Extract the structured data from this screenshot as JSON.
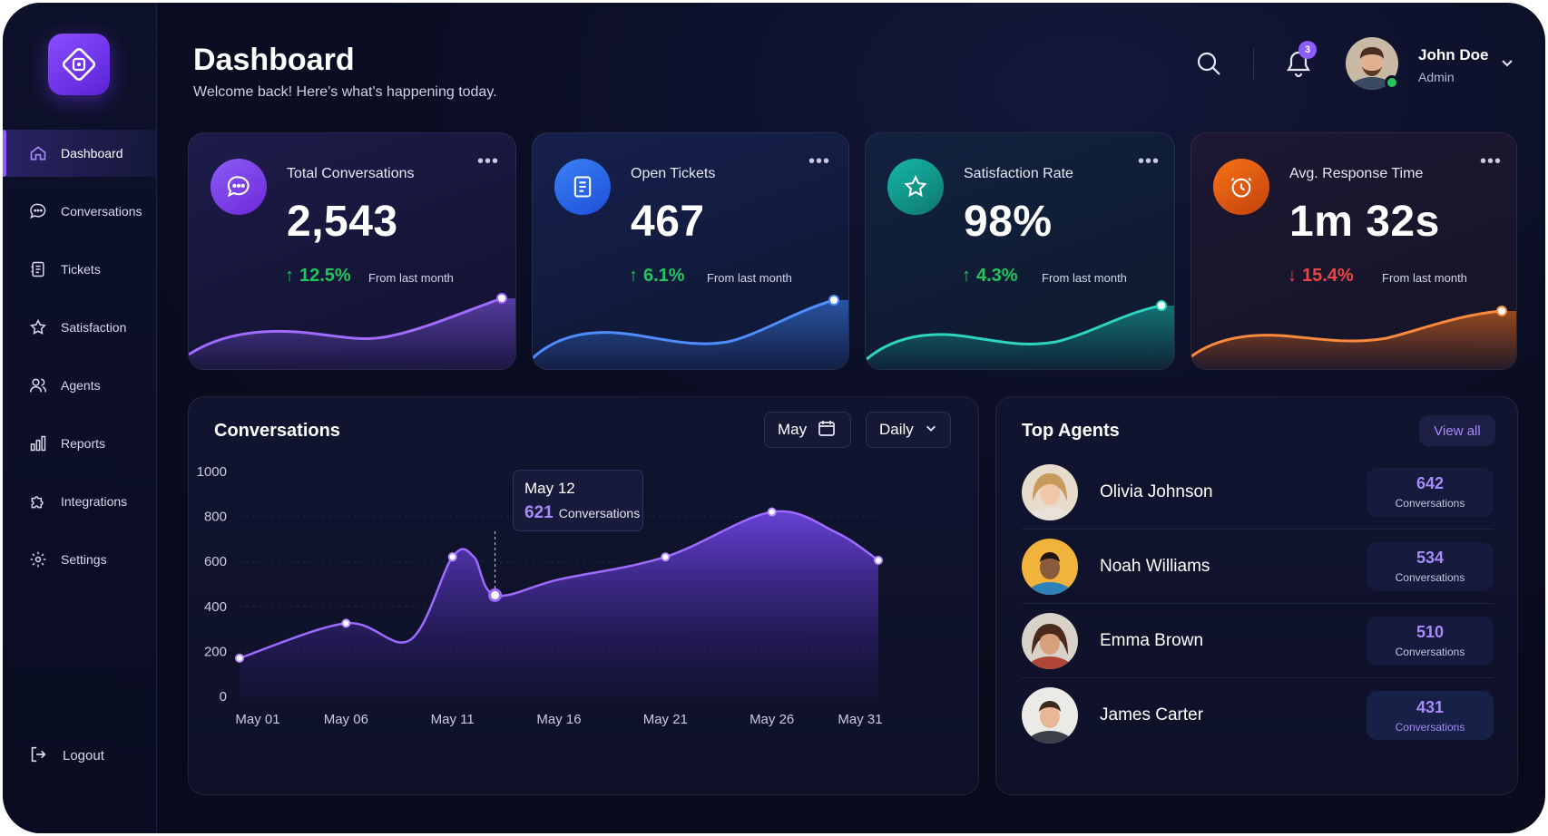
{
  "header": {
    "title": "Dashboard",
    "subtitle": "Welcome back! Here's what's happening today.",
    "notification_count": "3",
    "user": {
      "name": "John Doe",
      "role": "Admin",
      "status": "online"
    }
  },
  "sidebar": {
    "items": [
      {
        "label": "Dashboard",
        "icon": "home-icon",
        "active": true
      },
      {
        "label": "Conversations",
        "icon": "chat-bubble-icon",
        "active": false
      },
      {
        "label": "Tickets",
        "icon": "ticket-icon",
        "active": false
      },
      {
        "label": "Satisfaction",
        "icon": "star-icon",
        "active": false
      },
      {
        "label": "Agents",
        "icon": "users-icon",
        "active": false
      },
      {
        "label": "Reports",
        "icon": "bar-chart-icon",
        "active": false
      },
      {
        "label": "Integrations",
        "icon": "puzzle-icon",
        "active": false
      },
      {
        "label": "Settings",
        "icon": "gear-icon",
        "active": false
      }
    ],
    "logout_label": "Logout"
  },
  "stats": [
    {
      "label": "Total Conversations",
      "value": "2,543",
      "delta": "12.5%",
      "trend": "up",
      "from": "From last month",
      "color": "#8b5cf6",
      "icon": "chat-bubble-icon"
    },
    {
      "label": "Open Tickets",
      "value": "467",
      "delta": "6.1%",
      "trend": "up",
      "from": "From last month",
      "color": "#3b82f6",
      "icon": "ticket-icon"
    },
    {
      "label": "Satisfaction Rate",
      "value": "98%",
      "delta": "4.3%",
      "trend": "up",
      "from": "From last month",
      "color": "#14b8a6",
      "icon": "star-icon"
    },
    {
      "label": "Avg. Response Time",
      "value": "1m 32s",
      "delta": "15.4%",
      "trend": "down",
      "from": "From last month",
      "color": "#f97316",
      "icon": "clock-icon"
    }
  ],
  "conversations": {
    "title": "Conversations",
    "month": "May",
    "period": "Daily",
    "tooltip": {
      "date": "May 12",
      "value": "621",
      "unit": "Conversations"
    }
  },
  "chart_data": {
    "type": "area",
    "x_ticks": [
      "May 01",
      "May 06",
      "May 11",
      "May 16",
      "May 21",
      "May 26",
      "May 31"
    ],
    "y_ticks": [
      0,
      200,
      400,
      600,
      800,
      1000
    ],
    "ylim": [
      0,
      1000
    ],
    "xlim": [
      1,
      31
    ],
    "series": [
      {
        "points": [
          [
            1,
            170
          ],
          [
            6,
            325
          ],
          [
            9,
            250
          ],
          [
            11,
            620
          ],
          [
            12,
            621
          ],
          [
            13,
            450
          ],
          [
            16,
            520
          ],
          [
            21,
            620
          ],
          [
            26,
            820
          ],
          [
            29,
            730
          ],
          [
            31,
            605
          ]
        ]
      }
    ],
    "marked_points": [
      [
        1,
        170
      ],
      [
        6,
        325
      ],
      [
        11,
        620
      ],
      [
        13,
        450
      ],
      [
        21,
        620
      ],
      [
        26,
        820
      ],
      [
        31,
        605
      ]
    ],
    "highlight_point": [
      13,
      450
    ],
    "grid": true,
    "color": "#8b5cf6"
  },
  "top_agents": {
    "title": "Top Agents",
    "view_all_label": "View all",
    "agents": [
      {
        "name": "Olivia Johnson",
        "count": "642",
        "unit": "Conversations"
      },
      {
        "name": "Noah Williams",
        "count": "534",
        "unit": "Conversations"
      },
      {
        "name": "Emma Brown",
        "count": "510",
        "unit": "Conversations"
      },
      {
        "name": "James Carter",
        "count": "431",
        "unit": "Conversations"
      }
    ]
  }
}
